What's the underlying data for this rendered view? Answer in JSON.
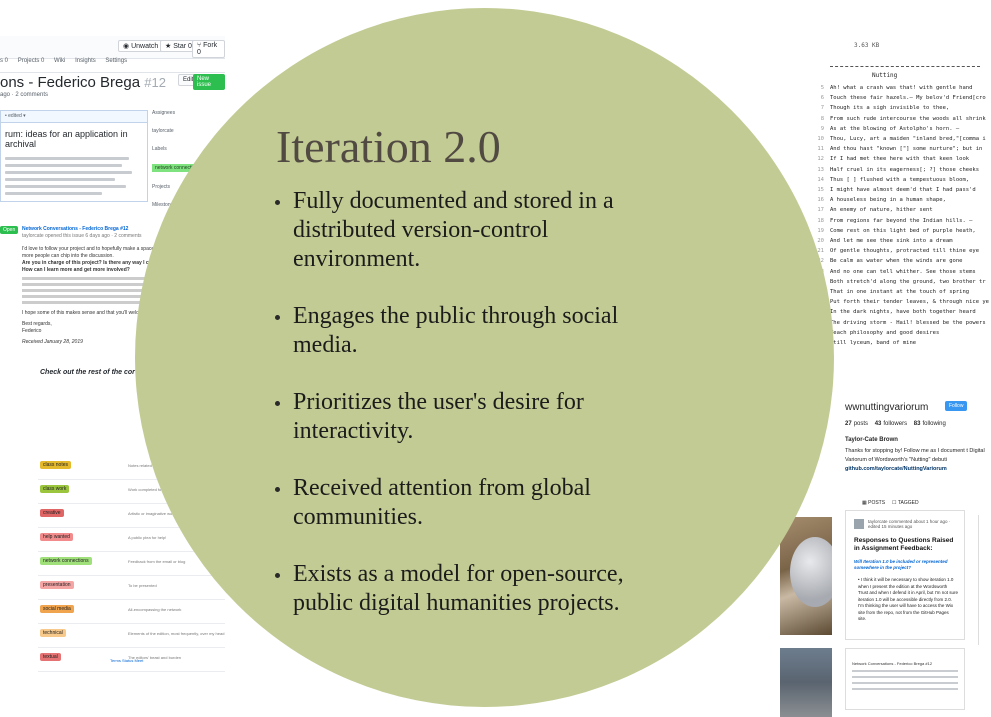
{
  "slide": {
    "title": "Iteration 2.0",
    "bullets": [
      "Fully documented and stored in a distributed version-control environment.",
      "Engages the public through social media.",
      "Prioritizes the user's desire for interactivity.",
      "Received attention from global communities.",
      "Exists as a model for open-source, public digital humanities projects."
    ]
  },
  "colors": {
    "circle": "#c2cb93",
    "title": "#514a43",
    "github_green": "#2cbe4e",
    "instagram_blue": "#3897f0"
  },
  "github": {
    "watch_label": "Unwatch",
    "watch_count": "2",
    "star_label": "Star",
    "star_count": "0",
    "fork_label": "Fork",
    "fork_count": "0",
    "tabs": [
      "s 0",
      "Projects 0",
      "Wiki",
      "Insights",
      "Settings"
    ],
    "issue_title": "ons - Federico Brega",
    "issue_number": "#12",
    "issue_meta": "ago · 2 comments",
    "edit_label": "Edit",
    "new_issue_label": "New issue",
    "comment_head": "• edited ▾",
    "comment_title": "rum: ideas for an application in archival",
    "side_assignees": "Assignees",
    "side_user": "taylorcate",
    "side_labels": "Labels",
    "side_label_value": "network connections",
    "side_projects": "Projects",
    "side_milestone": "Milestone",
    "open_badge": "Open",
    "thread_title": "Network Conversations - Federico Brega #12",
    "thread_meta": "taylorcate opened this issue 6 days ago · 2 comments",
    "thread_text_1": "I'd love to follow your project and to hopefully make a space for our conversation so that more people can chip into the discussion.",
    "thread_q1": "Are you in charge of this project? Is there any way I can learn more?",
    "thread_q2": "How can I learn more and get more involved?",
    "thread_text_2": "I hope some of this makes sense and that you'll welcome it.",
    "thread_sign_1": "Best regards,",
    "thread_sign_2": "Federico",
    "thread_received": "Received January 28, 2019",
    "checkout": "Check out the rest of the cor",
    "labels": [
      {
        "name": "class notes",
        "color": "#e4b92b",
        "desc": "Notes related to class"
      },
      {
        "name": "class work",
        "color": "#9bc53d",
        "desc": "Work completed for class"
      },
      {
        "name": "creative",
        "color": "#e06666",
        "desc": "Artistic or imaginative work"
      },
      {
        "name": "help wanted",
        "color": "#f28c8c",
        "desc": "A public plea for help!"
      },
      {
        "name": "network connections",
        "color": "#9fe07a",
        "desc": "Feedback from the email or blog"
      },
      {
        "name": "presentation",
        "color": "#f6a5a5",
        "desc": "To be presented"
      },
      {
        "name": "social media",
        "color": "#f0a44e",
        "desc": "All-encompassing the network"
      },
      {
        "name": "technical",
        "color": "#f7c98b",
        "desc": "Elements of the edition, most frequently, over my head"
      },
      {
        "name": "textual",
        "color": "#e57373",
        "desc": "The editors' beast and burden"
      }
    ],
    "footer": "Terms  Status  Meet"
  },
  "poem": {
    "size": "3.63 KB",
    "title": "Nutting",
    "lines": [
      {
        "n": "5",
        "t": "Ah! what a crash was that! with gentle hand"
      },
      {
        "n": "6",
        "t": "Touch these fair hazels.— My belov'd Friend[cro"
      },
      {
        "n": "7",
        "t": "Though its a sigh invisible to thee,"
      },
      {
        "n": "8",
        "t": "From such rude intercourse the woods all shrink"
      },
      {
        "n": "9",
        "t": "As at the blowing of Astolpho's horn. —"
      },
      {
        "n": "10",
        "t": "Thou, Lucy, art a maiden \"inland bred,\"[comma i"
      },
      {
        "n": "11",
        "t": "And thou hast \"known [\"] some nurture\"; but in"
      },
      {
        "n": "12",
        "t": "If I had met thee here with that keen look"
      },
      {
        "n": "13",
        "t": "Half cruel in its eagerness[; ?] those cheeks"
      },
      {
        "n": "14",
        "t": "Thus [ ] flushed with a tempestuous bloom,"
      },
      {
        "n": "15",
        "t": "I might have almost deem'd that I had pass'd"
      },
      {
        "n": "16",
        "t": "A houseless being in a human shape,"
      },
      {
        "n": "17",
        "t": "An enemy of nature, hither sent"
      },
      {
        "n": "18",
        "t": "From regions far beyond the Indian hills. —"
      },
      {
        "n": "19",
        "t": "Come rest on this light bed of purple heath,"
      },
      {
        "n": "20",
        "t": "And let me see thee sink into a dream"
      },
      {
        "n": "21",
        "t": "Of gentle thoughts, protracted till thine eye"
      },
      {
        "n": "22",
        "t": "Be calm as water when the winds are gone"
      },
      {
        "n": "23",
        "t": "And no one can tell whither. See those stems"
      },
      {
        "n": "24",
        "t": "Both stretch'd along the ground, two brother tr"
      },
      {
        "n": "25",
        "t": "That in one instant at the touch of spring"
      },
      {
        "n": "26",
        "t": "Put forth their tender leaves, & through nice ye"
      },
      {
        "n": "27",
        "t": "In the dark nights, have both together heard"
      },
      {
        "n": "28",
        "t": "The driving storm - Hail! blessed be the powers"
      },
      {
        "n": "29",
        "t": "Teach philosophy and good desires"
      },
      {
        "n": "30",
        "t": "still lyceum, band of mine"
      }
    ]
  },
  "instagram": {
    "handle": "wwnuttingvariorum",
    "follow_label": "Follow",
    "posts": "27",
    "posts_label": "posts",
    "followers": "43",
    "followers_label": "followers",
    "following": "83",
    "following_label": "following",
    "name": "Taylor-Cate Brown",
    "bio": "Thanks for stopping by! Follow me as I document t Digital Variorum of Wordsworth's \"Nutting\" debuti",
    "link": "github.com/taylorcate/NuttingVariorum",
    "tab_posts": "POSTS",
    "tab_tagged": "TAGGED"
  },
  "post": {
    "user_line": "taylorcate commented about 1 hour ago · edited 15 minutes ago",
    "headline": "Responses to Questions Raised in Assignment Feedback:",
    "question": "Will Iteration 1.0 be included or represented somewhere in the project?",
    "body": "• I think it will be necessary to show iteration 1.0 when I present the edition at the Wordsworth Trust and when I defend it in April, but I'm not sure iteration 1.0 will be accessible directly from 2.0. I'm thinking the user will have to access the Wix site from the repo, not from the GitHub Pages site.",
    "thumb_title": "Network Conversations - Federico Brega #12"
  }
}
